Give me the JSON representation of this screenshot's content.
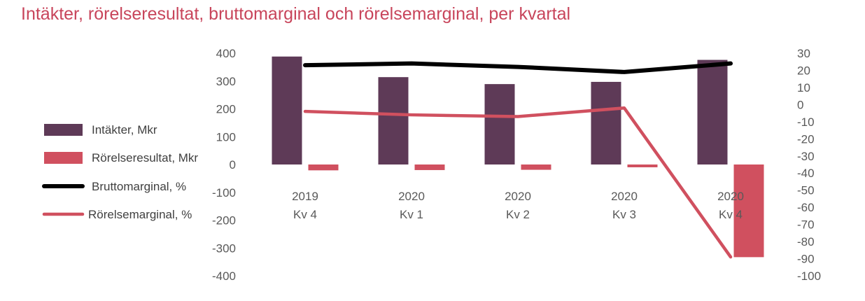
{
  "chart_data": {
    "type": "bar",
    "title": "Intäkter, rörelseresultat, bruttomarginal och rörelsemarginal, per kvartal",
    "categories": [
      [
        "2019",
        "Kv 4"
      ],
      [
        "2020",
        "Kv 1"
      ],
      [
        "2020",
        "Kv 2"
      ],
      [
        "2020",
        "Kv 3"
      ],
      [
        "2020",
        "Kv 4"
      ]
    ],
    "y_left": {
      "ticks": [
        "400",
        "300",
        "200",
        "100",
        "0",
        "-100",
        "-200",
        "-300",
        "-400"
      ],
      "ylim": [
        -400,
        400
      ]
    },
    "y_right": {
      "ticks": [
        "30",
        "20",
        "10",
        "0",
        "-10",
        "-20",
        "-30",
        "-40",
        "-50",
        "-60",
        "-70",
        "-80",
        "-90",
        "-100"
      ],
      "ylim": [
        -100,
        30
      ]
    },
    "series": [
      {
        "name": "Intäkter, Mkr",
        "kind": "bar",
        "axis": "left",
        "color": "#5e3a57",
        "values": [
          388,
          314,
          289,
          297,
          376
        ]
      },
      {
        "name": "Rörelseresultat, Mkr",
        "kind": "bar",
        "axis": "left",
        "color": "#d0505f",
        "values": [
          -21,
          -20,
          -19,
          -10,
          -333
        ]
      },
      {
        "name": "Bruttomarginal, %",
        "kind": "line",
        "axis": "right",
        "color": "#000000",
        "values": [
          23,
          24,
          22,
          19,
          24
        ]
      },
      {
        "name": "Rörelsemarginal, %",
        "kind": "line",
        "axis": "right",
        "color": "#d0505f",
        "values": [
          -4,
          -6,
          -7,
          -2,
          -89
        ]
      }
    ],
    "legend_position": "left"
  }
}
